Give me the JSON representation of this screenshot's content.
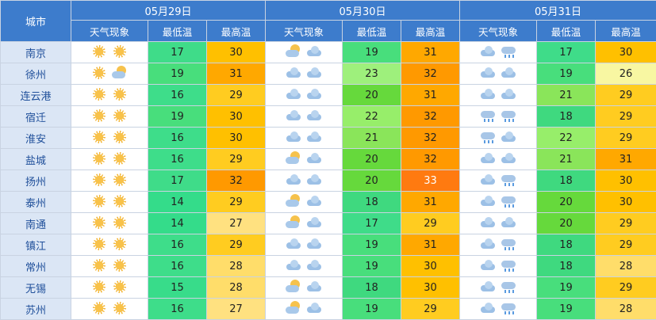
{
  "header": {
    "city_label": "城市",
    "days": [
      {
        "date": "05月29日",
        "cols": [
          "天气现象",
          "最低温",
          "最高温"
        ]
      },
      {
        "date": "05月30日",
        "cols": [
          "天气现象",
          "最低温",
          "最高温"
        ]
      },
      {
        "date": "05月31日",
        "cols": [
          "天气现象",
          "最低温",
          "最高温"
        ]
      }
    ]
  },
  "rows": [
    {
      "city": "南京",
      "days": [
        {
          "icons": [
            "sun-icon",
            "sun-icon"
          ],
          "low": "17",
          "high": "30"
        },
        {
          "icons": [
            "partly-cloudy-icon",
            "cloud-icon"
          ],
          "low": "19",
          "high": "31"
        },
        {
          "icons": [
            "cloud-icon",
            "rain-icon"
          ],
          "low": "17",
          "high": "30"
        }
      ]
    },
    {
      "city": "徐州",
      "days": [
        {
          "icons": [
            "sun-icon",
            "partly-cloudy-icon"
          ],
          "low": "19",
          "high": "31"
        },
        {
          "icons": [
            "cloud-icon",
            "cloud-icon"
          ],
          "low": "23",
          "high": "32"
        },
        {
          "icons": [
            "cloud-icon",
            "cloud-icon"
          ],
          "low": "19",
          "high": "26"
        }
      ]
    },
    {
      "city": "连云港",
      "days": [
        {
          "icons": [
            "sun-icon",
            "sun-icon"
          ],
          "low": "16",
          "high": "29"
        },
        {
          "icons": [
            "cloud-icon",
            "cloud-icon"
          ],
          "low": "20",
          "high": "31"
        },
        {
          "icons": [
            "cloud-icon",
            "cloud-icon"
          ],
          "low": "21",
          "high": "29"
        }
      ]
    },
    {
      "city": "宿迁",
      "days": [
        {
          "icons": [
            "sun-icon",
            "sun-icon"
          ],
          "low": "19",
          "high": "30"
        },
        {
          "icons": [
            "cloud-icon",
            "cloud-icon"
          ],
          "low": "22",
          "high": "32"
        },
        {
          "icons": [
            "rain-icon",
            "rain-icon"
          ],
          "low": "18",
          "high": "29"
        }
      ]
    },
    {
      "city": "淮安",
      "days": [
        {
          "icons": [
            "sun-icon",
            "sun-icon"
          ],
          "low": "16",
          "high": "30"
        },
        {
          "icons": [
            "cloud-icon",
            "cloud-icon"
          ],
          "low": "21",
          "high": "32"
        },
        {
          "icons": [
            "rain-icon",
            "cloud-icon"
          ],
          "low": "22",
          "high": "29"
        }
      ]
    },
    {
      "city": "盐城",
      "days": [
        {
          "icons": [
            "sun-icon",
            "sun-icon"
          ],
          "low": "16",
          "high": "29"
        },
        {
          "icons": [
            "partly-cloudy-icon",
            "cloud-icon"
          ],
          "low": "20",
          "high": "32"
        },
        {
          "icons": [
            "cloud-icon",
            "cloud-icon"
          ],
          "low": "21",
          "high": "31"
        }
      ]
    },
    {
      "city": "扬州",
      "days": [
        {
          "icons": [
            "sun-icon",
            "sun-icon"
          ],
          "low": "17",
          "high": "32"
        },
        {
          "icons": [
            "cloud-icon",
            "cloud-icon"
          ],
          "low": "20",
          "high": "33"
        },
        {
          "icons": [
            "cloud-icon",
            "rain-icon"
          ],
          "low": "18",
          "high": "30"
        }
      ]
    },
    {
      "city": "泰州",
      "days": [
        {
          "icons": [
            "sun-icon",
            "sun-icon"
          ],
          "low": "14",
          "high": "29"
        },
        {
          "icons": [
            "partly-cloudy-icon",
            "cloud-icon"
          ],
          "low": "18",
          "high": "31"
        },
        {
          "icons": [
            "cloud-icon",
            "rain-icon"
          ],
          "low": "20",
          "high": "30"
        }
      ]
    },
    {
      "city": "南通",
      "days": [
        {
          "icons": [
            "sun-icon",
            "sun-icon"
          ],
          "low": "14",
          "high": "27"
        },
        {
          "icons": [
            "partly-cloudy-icon",
            "cloud-icon"
          ],
          "low": "17",
          "high": "29"
        },
        {
          "icons": [
            "cloud-icon",
            "cloud-icon"
          ],
          "low": "20",
          "high": "29"
        }
      ]
    },
    {
      "city": "镇江",
      "days": [
        {
          "icons": [
            "sun-icon",
            "sun-icon"
          ],
          "low": "16",
          "high": "29"
        },
        {
          "icons": [
            "cloud-icon",
            "cloud-icon"
          ],
          "low": "19",
          "high": "31"
        },
        {
          "icons": [
            "cloud-icon",
            "rain-icon"
          ],
          "low": "18",
          "high": "29"
        }
      ]
    },
    {
      "city": "常州",
      "days": [
        {
          "icons": [
            "sun-icon",
            "sun-icon"
          ],
          "low": "16",
          "high": "28"
        },
        {
          "icons": [
            "cloud-icon",
            "cloud-icon"
          ],
          "low": "19",
          "high": "30"
        },
        {
          "icons": [
            "cloud-icon",
            "rain-icon"
          ],
          "low": "18",
          "high": "28"
        }
      ]
    },
    {
      "city": "无锡",
      "days": [
        {
          "icons": [
            "sun-icon",
            "sun-icon"
          ],
          "low": "15",
          "high": "28"
        },
        {
          "icons": [
            "partly-cloudy-icon",
            "cloud-icon"
          ],
          "low": "18",
          "high": "30"
        },
        {
          "icons": [
            "cloud-icon",
            "rain-icon"
          ],
          "low": "19",
          "high": "29"
        }
      ]
    },
    {
      "city": "苏州",
      "days": [
        {
          "icons": [
            "sun-icon",
            "sun-icon"
          ],
          "low": "16",
          "high": "27"
        },
        {
          "icons": [
            "partly-cloudy-icon",
            "cloud-icon"
          ],
          "low": "19",
          "high": "29"
        },
        {
          "icons": [
            "cloud-icon",
            "rain-icon"
          ],
          "low": "19",
          "high": "28"
        }
      ]
    }
  ],
  "temp_colors": {
    "14": "#34dc8a",
    "15": "#38dc8a",
    "16": "#3edd8a",
    "17": "#3fdc89",
    "18": "#3fd97f",
    "19": "#48de7c",
    "20": "#66d93c",
    "21": "#8ae55a",
    "22": "#97ee6a",
    "23": "#9ef07c",
    "26": "#f8f7a2",
    "27": "#ffe180",
    "28": "#ffdd6a",
    "29": "#ffcc20",
    "30": "#ffc000",
    "31": "#ffa800",
    "32": "#ff9900",
    "33": "#ff7a10"
  },
  "special_colors": {
    "highlight_30_cell": "#ffa020"
  }
}
